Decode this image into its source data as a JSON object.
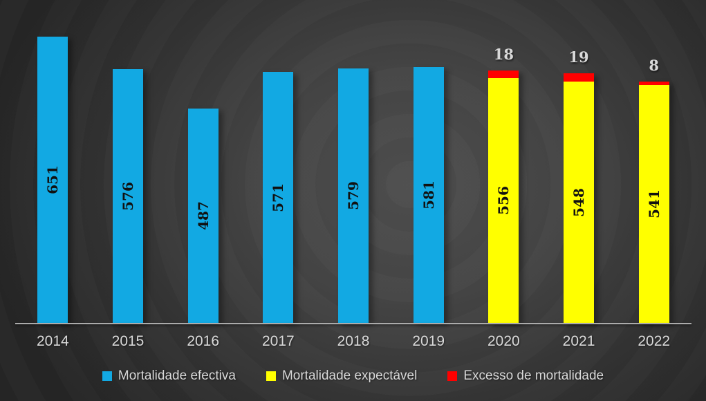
{
  "chart_data": {
    "type": "bar",
    "stacked": true,
    "title": "",
    "xlabel": "",
    "ylabel": "",
    "categories": [
      "2014",
      "2015",
      "2016",
      "2017",
      "2018",
      "2019",
      "2020",
      "2021",
      "2022"
    ],
    "series": [
      {
        "name": "Mortalidade efectiva",
        "color": "#12A9E3",
        "label_color": "#111111",
        "values": [
          651,
          576,
          487,
          571,
          579,
          581,
          null,
          null,
          null
        ]
      },
      {
        "name": "Mortalidade expectável",
        "color": "#FFFF00",
        "label_color": "#111111",
        "values": [
          null,
          null,
          null,
          null,
          null,
          null,
          556,
          548,
          541
        ]
      },
      {
        "name": "Excesso de mortalidade",
        "color": "#FF0000",
        "label_color": "#D9D9D9",
        "values": [
          null,
          null,
          null,
          null,
          null,
          null,
          18,
          19,
          8
        ]
      }
    ],
    "ylim": [
      0,
      660
    ],
    "grid": false,
    "legend_position": "bottom",
    "axis_color": "#ABABAB",
    "text_color": "#D9D9D9",
    "background": {
      "center": "#4E4E4E",
      "edge": "#262626"
    }
  }
}
